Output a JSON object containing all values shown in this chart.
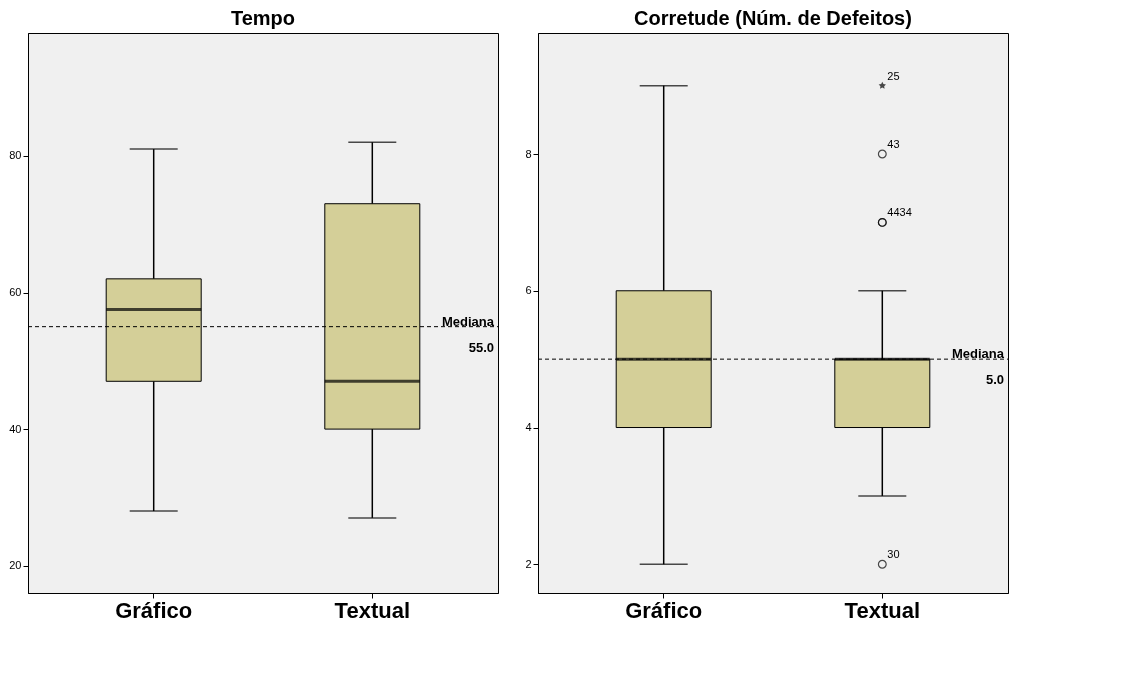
{
  "chart_data": [
    {
      "type": "box",
      "title": "Tempo",
      "categories": [
        "Gráfico",
        "Textual"
      ],
      "boxes": [
        {
          "low": 28,
          "q1": 47,
          "median": 57.5,
          "q3": 62,
          "high": 81
        },
        {
          "low": 27,
          "q1": 40,
          "median": 47,
          "q3": 73,
          "high": 82
        }
      ],
      "color": "#d4cf98",
      "ylim": [
        16,
        98
      ],
      "yticks": [
        20,
        40,
        60,
        80
      ],
      "grid": false,
      "ref_lines": [
        {
          "axis": "y",
          "value": 55,
          "label": "Mediana\n55.0",
          "line_style": "dashed"
        }
      ]
    },
    {
      "type": "box",
      "title": "Corretude (Núm. de Defeitos)",
      "categories": [
        "Gráfico",
        "Textual"
      ],
      "boxes": [
        {
          "low": 2,
          "q1": 4,
          "median": 5,
          "q3": 6,
          "high": 9
        },
        {
          "low": 3,
          "q1": 4,
          "median": 5,
          "q3": 5,
          "high": 6
        }
      ],
      "color": "#d4cf98",
      "ylim": [
        1.58,
        9.77
      ],
      "yticks": [
        2,
        4,
        6,
        8
      ],
      "grid": false,
      "series": [
        {
          "type": "scatter",
          "x": [
            "Textual"
          ],
          "values": [
            9
          ],
          "marker": "star",
          "color": "#000000"
        },
        {
          "type": "scatter",
          "x": [
            "Textual",
            "Textual",
            "Textual",
            "Textual"
          ],
          "values": [
            2,
            7,
            7,
            8
          ],
          "marker": "circle",
          "color": "#000000"
        }
      ],
      "ref_lines": [
        {
          "axis": "y",
          "value": 5,
          "label": "Mediana\n5.0",
          "line_style": "dashed"
        }
      ],
      "annotations": [
        {
          "text": "25",
          "x": "Textual",
          "y": 9
        },
        {
          "text": "43",
          "x": "Textual",
          "y": 8
        },
        {
          "text": "4434",
          "x": "Textual",
          "y": 7
        },
        {
          "text": "30",
          "x": "Textual",
          "y": 2
        }
      ]
    }
  ]
}
